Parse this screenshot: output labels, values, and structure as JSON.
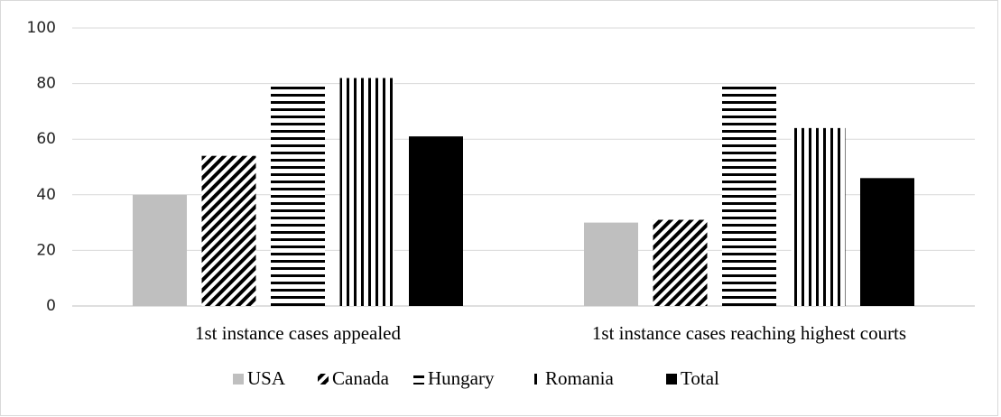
{
  "chart_data": {
    "type": "bar",
    "categories": [
      "1st instance cases appealed",
      "1st instance cases reaching highest courts"
    ],
    "series": [
      {
        "name": "USA",
        "color": "#bfbfbf",
        "pattern": "solid",
        "values": [
          40,
          30
        ]
      },
      {
        "name": "Canada",
        "color": "#000000",
        "pattern": "diagonal",
        "values": [
          54,
          31
        ]
      },
      {
        "name": "Hungary",
        "color": "#000000",
        "pattern": "horizontal",
        "values": [
          79,
          79
        ]
      },
      {
        "name": "Romania",
        "color": "#000000",
        "pattern": "vertical",
        "values": [
          82,
          64
        ]
      },
      {
        "name": "Total",
        "color": "#000000",
        "pattern": "solid",
        "values": [
          61,
          46
        ]
      }
    ],
    "ylim": [
      0,
      100
    ],
    "yticks": [
      0,
      20,
      40,
      60,
      80,
      100
    ],
    "grid": true,
    "legend": "bottom"
  }
}
